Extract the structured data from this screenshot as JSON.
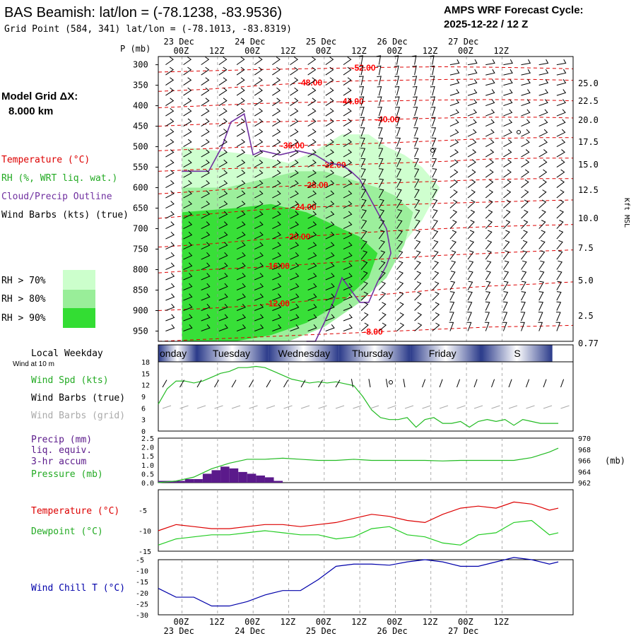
{
  "header": {
    "title": "BAS Beamish:  lat/lon = (-78.1238, -83.9536)",
    "subtitle": "Grid Point (584, 341) lat/lon = (-78.1013, -83.8319)",
    "cycle_line1": "AMPS WRF Forecast Cycle:",
    "cycle_line2": "2025-12-22 / 12  Z"
  },
  "left_panel": {
    "model_grid_label": "Model Grid ΔX:",
    "model_grid_value": "8.000 km",
    "legend_temperature": "Temperature (°C)",
    "legend_rh": "RH (%, WRT liq. wat.)",
    "legend_cloud": "Cloud/Precip Outline",
    "legend_wind": "Wind Barbs (kts) (true)",
    "rh70": "RH > 70%",
    "rh80": "RH > 80%",
    "rh90": "RH > 90%",
    "local_weekday": "Local Weekday",
    "wind_at_10m": "Wind at 10 m",
    "wind_spd": "Wind Spd (kts)",
    "wind_barbs_true": "Wind Barbs (true)",
    "wind_barbs_grid": "Wind Barbs (grid)",
    "precip1": "Precip (mm)",
    "precip2": "liq. equiv.",
    "precip3": "3-hr accum",
    "pressure": "Pressure (mb)",
    "temperature": "Temperature (°C)",
    "dewpoint": "Dewpoint (°C)",
    "wind_chill": "Wind Chill T (°C)"
  },
  "colors": {
    "temperature": "#dd0000",
    "rh70": "#ccffcc",
    "rh80": "#99ee99",
    "rh90": "#33dd33",
    "cloud": "#7030a0",
    "wind_true": "#000000",
    "wind_grid": "#aaaaaa",
    "precip": "#5b1a8b",
    "pressure": "#22bb22",
    "dewpoint": "#22cc22",
    "windchill": "#0000aa",
    "weekday_band": "#2a3a8a"
  },
  "time_axis": {
    "top_dates": [
      "23 Dec",
      "24 Dec",
      "25 Dec",
      "26 Dec",
      "27 Dec"
    ],
    "top_hours": [
      "00Z",
      "12Z",
      "00Z",
      "12Z",
      "00Z",
      "12Z",
      "00Z",
      "12Z",
      "00Z",
      "12Z"
    ],
    "bottom_hours": [
      "00Z",
      "12Z",
      "00Z",
      "12Z",
      "00Z",
      "12Z",
      "00Z",
      "12Z",
      "00Z",
      "12Z"
    ],
    "bottom_dates": [
      "23 Dec",
      "24 Dec",
      "25 Dec",
      "26 Dec",
      "27 Dec"
    ],
    "weekdays": [
      "onday",
      "Tuesday",
      "Wednesday",
      "Thursday",
      "Friday",
      "S"
    ]
  },
  "chart_data": [
    {
      "type": "heatmap",
      "name": "cross-section",
      "ylabel_left": "P (mb)",
      "ylabel_right": "Kft MSL",
      "pressure_levels": [
        300,
        350,
        400,
        450,
        500,
        550,
        600,
        650,
        700,
        750,
        800,
        850,
        900,
        950
      ],
      "height_ticks": [
        "25.0",
        "22.5",
        "20.0",
        "17.5",
        "15.0",
        "12.5",
        "10.0",
        "7.5",
        "5.0",
        "2.5",
        "0.77"
      ],
      "isotherm_labels": [
        "-52.00",
        "-48.00",
        "-44.00",
        "-40.00",
        "-36.00",
        "-32.00",
        "-28.00",
        "-24.00",
        "-20.00",
        "-16.00",
        "-12.00",
        "-8.00"
      ],
      "isotherms": [
        {
          "label": "-52.00",
          "p": [
            318,
            315,
            312,
            310,
            308,
            306,
            305,
            306,
            308,
            310
          ]
        },
        {
          "label": "-48.00",
          "p": [
            365,
            360,
            352,
            345,
            340,
            338,
            336,
            335,
            336,
            338
          ]
        },
        {
          "label": "-44.00",
          "p": [
            405,
            400,
            395,
            392,
            390,
            388,
            386,
            385,
            386,
            388
          ]
        },
        {
          "label": "-40.00",
          "p": [
            450,
            445,
            440,
            438,
            436,
            433,
            430,
            428,
            428,
            430
          ]
        },
        {
          "label": "-36.00",
          "p": [
            510,
            505,
            500,
            497,
            494,
            490,
            485,
            480,
            478,
            478
          ]
        },
        {
          "label": "-32.00",
          "p": [
            560,
            555,
            552,
            548,
            544,
            540,
            536,
            530,
            528,
            528
          ]
        },
        {
          "label": "-28.00",
          "p": [
            615,
            608,
            600,
            595,
            592,
            588,
            584,
            580,
            578,
            578
          ]
        },
        {
          "label": "-24.00",
          "p": [
            675,
            665,
            655,
            648,
            645,
            642,
            638,
            635,
            632,
            630
          ]
        },
        {
          "label": "-20.00",
          "p": [
            745,
            738,
            728,
            720,
            712,
            705,
            700,
            695,
            692,
            690
          ]
        },
        {
          "label": "-16.00",
          "p": [
            808,
            800,
            795,
            788,
            780,
            772,
            765,
            760,
            755,
            752
          ]
        },
        {
          "label": "-12.00",
          "p": [
            900,
            895,
            888,
            878,
            868,
            858,
            848,
            840,
            835,
            830
          ]
        },
        {
          "label": "-8.00",
          "p": [
            975,
            970,
            965,
            960,
            955,
            950,
            945,
            940,
            938,
            936
          ]
        }
      ],
      "rh_regions": [
        {
          "level": 70,
          "t": [
            0,
            8,
            16,
            24,
            30,
            36,
            42,
            46,
            50,
            54,
            58,
            54,
            48,
            40,
            32,
            24,
            16,
            8,
            0
          ],
          "p": [
            500,
            510,
            520,
            540,
            510,
            470,
            470,
            500,
            520,
            550,
            600,
            680,
            760,
            840,
            920,
            975,
            975,
            975,
            975
          ]
        },
        {
          "level": 80,
          "t": [
            0,
            10,
            18,
            26,
            32,
            38,
            44,
            48,
            52,
            50,
            46,
            40,
            32,
            24,
            16,
            8,
            0
          ],
          "p": [
            600,
            600,
            580,
            560,
            560,
            580,
            600,
            620,
            660,
            740,
            820,
            880,
            940,
            975,
            975,
            975,
            975
          ]
        },
        {
          "level": 90,
          "t": [
            0,
            12,
            20,
            28,
            34,
            40,
            44,
            42,
            36,
            28,
            20,
            12,
            0
          ],
          "p": [
            660,
            650,
            640,
            660,
            690,
            720,
            760,
            820,
            880,
            930,
            960,
            975,
            975
          ]
        }
      ],
      "cloud_outline": {
        "t": [
          0,
          6,
          9,
          11,
          14,
          16,
          18,
          22,
          26,
          30,
          33,
          36,
          38,
          40,
          42,
          44,
          46,
          47,
          46,
          44,
          42,
          40,
          38,
          36,
          34,
          32,
          30,
          28
        ],
        "p": [
          560,
          560,
          500,
          440,
          420,
          520,
          510,
          520,
          510,
          520,
          540,
          545,
          560,
          580,
          620,
          660,
          700,
          760,
          790,
          830,
          880,
          880,
          850,
          820,
          880,
          930,
          975,
          975
        ]
      }
    },
    {
      "type": "line",
      "name": "wind speed",
      "ylabel": "Wind Spd (kts)",
      "ylim": [
        0,
        18
      ],
      "yticks": [
        "0",
        "3",
        "6",
        "9",
        "12",
        "15",
        "18"
      ],
      "t": [
        0,
        3,
        6,
        9,
        12,
        15,
        18,
        21,
        24,
        27,
        30,
        33,
        36,
        39,
        42,
        45,
        48,
        51,
        54,
        57,
        60,
        63,
        66,
        69,
        72,
        75,
        78,
        81,
        84,
        87,
        90,
        93,
        96,
        99,
        102,
        105,
        108,
        111,
        114,
        117,
        120,
        123,
        126,
        129,
        132,
        135
      ],
      "values": [
        7,
        11,
        13,
        13,
        12.5,
        13,
        14,
        15,
        15.5,
        16.5,
        16.5,
        16.8,
        16.5,
        15.5,
        14.5,
        13.5,
        13,
        12.5,
        12.8,
        12.5,
        12.8,
        12.3,
        11.8,
        9,
        5.5,
        3.5,
        3,
        3,
        3.5,
        1,
        3,
        3.5,
        2,
        2,
        2.5,
        1,
        2.5,
        3,
        2.5,
        3,
        1.5,
        3,
        2.5,
        2,
        2,
        2
      ]
    },
    {
      "type": "bar",
      "name": "precip",
      "ylabel": "Precip (mm)",
      "ylim": [
        0,
        2.5
      ],
      "yticks": [
        "0.0",
        "0.5",
        "1.0",
        "1.5",
        "2.0",
        "2.5"
      ],
      "t": [
        3,
        6,
        9,
        12,
        15,
        18,
        21,
        24,
        27,
        30,
        33,
        36,
        39,
        42
      ],
      "values": [
        0.1,
        0.1,
        0.1,
        0.2,
        0.2,
        0.5,
        0.7,
        0.9,
        0.8,
        0.6,
        0.5,
        0.4,
        0.3,
        0.1
      ]
    },
    {
      "type": "line",
      "name": "pressure",
      "ylabel": "Pressure (mb)",
      "ylim": [
        962,
        970
      ],
      "yticks": [
        "962",
        "964",
        "966",
        "968",
        "970"
      ],
      "units_label": "(mb)",
      "t": [
        0,
        6,
        12,
        18,
        24,
        30,
        36,
        42,
        48,
        54,
        60,
        66,
        72,
        78,
        84,
        90,
        96,
        102,
        108,
        114,
        120,
        126,
        132,
        135
      ],
      "values": [
        962,
        962.3,
        963,
        964.5,
        965.5,
        966.2,
        966.2,
        966.4,
        966.2,
        966.0,
        966.0,
        966.2,
        966.0,
        966.0,
        966.0,
        966.0,
        965.9,
        966.0,
        966.0,
        966.0,
        966.0,
        966.5,
        967.5,
        968.2
      ]
    },
    {
      "type": "line",
      "name": "temperature-dewpoint",
      "ylim": [
        -15,
        0
      ],
      "yticks": [
        "-5",
        "-10",
        "-15"
      ],
      "t": [
        0,
        6,
        12,
        18,
        24,
        30,
        36,
        42,
        48,
        54,
        60,
        66,
        72,
        78,
        84,
        90,
        96,
        102,
        108,
        114,
        120,
        126,
        132,
        135
      ],
      "temperature": [
        -10,
        -8.5,
        -9,
        -9.5,
        -9.5,
        -9,
        -8.5,
        -8.5,
        -9,
        -8.5,
        -8,
        -7,
        -6,
        -6.5,
        -7.5,
        -8,
        -6,
        -4.5,
        -4,
        -4.5,
        -3,
        -3.5,
        -5,
        -4.5
      ],
      "dewpoint": [
        -13.5,
        -12,
        -11.5,
        -11,
        -11,
        -10.5,
        -10,
        -10.5,
        -11,
        -11,
        -12,
        -11.5,
        -9.5,
        -9,
        -11,
        -11.5,
        -13,
        -13.5,
        -11,
        -10.5,
        -8,
        -7.5,
        -11,
        -10.5
      ]
    },
    {
      "type": "line",
      "name": "wind chill",
      "ylabel": "Wind Chill T (°C)",
      "ylim": [
        -30,
        -5
      ],
      "yticks": [
        "-5",
        "-10",
        "-15",
        "-20",
        "-25",
        "-30"
      ],
      "t": [
        0,
        6,
        12,
        18,
        24,
        30,
        36,
        42,
        48,
        54,
        60,
        66,
        72,
        78,
        84,
        90,
        96,
        102,
        108,
        114,
        120,
        126,
        132,
        135
      ],
      "values": [
        -18,
        -22,
        -22,
        -26,
        -26,
        -24,
        -21,
        -19,
        -19,
        -14,
        -8,
        -7,
        -7,
        -7.5,
        -6,
        -5,
        -6,
        -8,
        -8,
        -6,
        -4,
        -5,
        -7,
        -6
      ]
    }
  ]
}
